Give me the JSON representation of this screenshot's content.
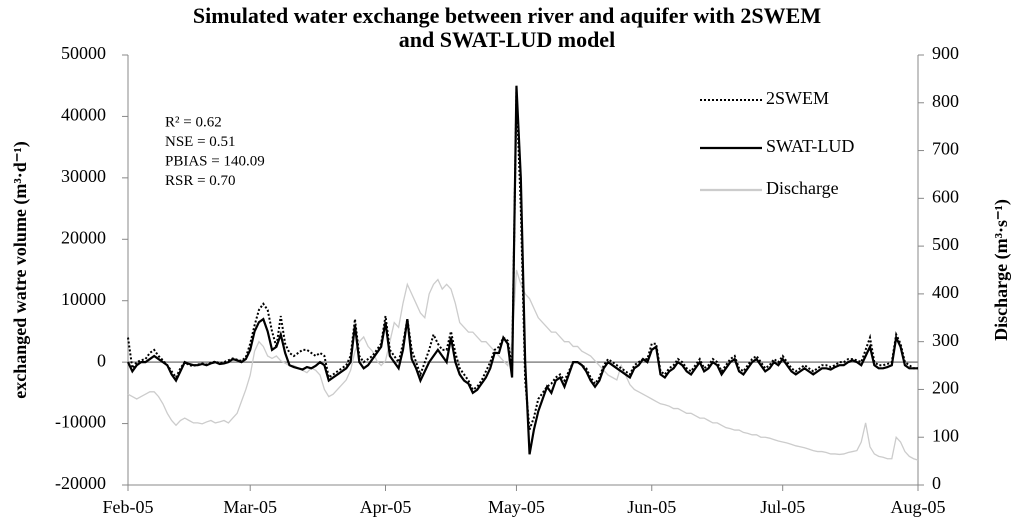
{
  "chart_data": {
    "type": "line",
    "title": [
      "Simulated water exchange between river and aquifer with 2SWEM",
      "and SWAT-LUD model"
    ],
    "ylabel": "exchanged watre volume (m³·d⁻¹)",
    "y2label": "Discharge (m³·s⁻¹)",
    "annotations": [
      "R² = 0.62",
      "NSE = 0.51",
      "PBIAS = 140.09",
      "RSR = 0.70"
    ],
    "categories": [
      "Feb-05",
      null,
      null,
      null,
      null,
      null,
      null,
      null,
      null,
      null,
      null,
      null,
      null,
      null,
      null,
      null,
      null,
      null,
      null,
      null,
      null,
      null,
      null,
      null,
      null,
      null,
      null,
      null,
      "Mar-05",
      null,
      null,
      null,
      null,
      null,
      null,
      null,
      null,
      null,
      null,
      null,
      null,
      null,
      null,
      null,
      null,
      null,
      null,
      null,
      null,
      null,
      null,
      null,
      null,
      null,
      null,
      null,
      null,
      null,
      null,
      "Apr-05",
      null,
      null,
      null,
      null,
      null,
      null,
      null,
      null,
      null,
      null,
      null,
      null,
      null,
      null,
      null,
      null,
      null,
      null,
      null,
      null,
      null,
      null,
      null,
      null,
      null,
      null,
      null,
      null,
      null,
      "May-05",
      null,
      null,
      null,
      null,
      null,
      null,
      null,
      null,
      null,
      null,
      null,
      null,
      null,
      null,
      null,
      null,
      null,
      null,
      null,
      null,
      null,
      null,
      null,
      null,
      null,
      null,
      null,
      null,
      null,
      null,
      "Jun-05",
      null,
      null,
      null,
      null,
      null,
      null,
      null,
      null,
      null,
      null,
      null,
      null,
      null,
      null,
      null,
      null,
      null,
      null,
      null,
      null,
      null,
      null,
      null,
      null,
      null,
      null,
      null,
      null,
      null,
      "Jul-05",
      null,
      null,
      null,
      null,
      null,
      null,
      null,
      null,
      null,
      null,
      null,
      null,
      null,
      null,
      null,
      null,
      null,
      null,
      null,
      null,
      null,
      null,
      null,
      null,
      null,
      null,
      null,
      null,
      null,
      null,
      "Aug-05"
    ],
    "ylim": [
      -20000,
      50000
    ],
    "yticks": [
      -20000,
      -10000,
      0,
      10000,
      20000,
      30000,
      40000,
      50000
    ],
    "y2lim": [
      0,
      900
    ],
    "y2ticks": [
      0,
      100,
      200,
      300,
      400,
      500,
      600,
      700,
      800,
      900
    ],
    "series": [
      {
        "name": "2SWEM",
        "color": "#000000",
        "dash": true,
        "values": [
          4000,
          -1000,
          0,
          300,
          500,
          1500,
          2000,
          1000,
          300,
          -500,
          -1500,
          -2500,
          -1000,
          0,
          -500,
          -600,
          -400,
          -200,
          -400,
          -100,
          100,
          -200,
          0,
          300,
          600,
          400,
          200,
          800,
          3000,
          6000,
          8500,
          9500,
          8500,
          5000,
          2500,
          7500,
          3000,
          1500,
          1000,
          1500,
          2000,
          2000,
          1500,
          1000,
          1500,
          1000,
          -2500,
          -2000,
          -1500,
          -1000,
          -500,
          1000,
          7000,
          1000,
          0,
          500,
          1000,
          2000,
          3000,
          7500,
          2000,
          1000,
          0,
          3000,
          7000,
          2000,
          0,
          -2000,
          0,
          2000,
          4500,
          3000,
          2000,
          2000,
          5000,
          1500,
          -1000,
          -2000,
          -3000,
          -4500,
          -4000,
          -3000,
          -1500,
          0,
          2000,
          2500,
          4000,
          3500,
          -1000,
          44000,
          25000,
          -3000,
          -11000,
          -9000,
          -6000,
          -5000,
          -4000,
          -3500,
          -2500,
          -2000,
          -3000,
          -1500,
          0,
          0,
          -500,
          -1000,
          -2500,
          -3500,
          -2500,
          -500,
          500,
          0,
          -500,
          -1000,
          -1500,
          -2000,
          -500,
          0,
          500,
          500,
          3000,
          3000,
          -1500,
          -2000,
          -1000,
          -500,
          500,
          0,
          -1000,
          -1500,
          -500,
          500,
          -1000,
          -500,
          500,
          0,
          -1500,
          -500,
          500,
          1000,
          -1000,
          -1500,
          -500,
          500,
          1000,
          0,
          -1000,
          -500,
          500,
          0,
          1000,
          0,
          -1000,
          -1500,
          -1000,
          -500,
          -1000,
          -1500,
          -1000,
          -500,
          -500,
          -800,
          -500,
          0,
          0,
          500,
          500,
          300,
          0,
          2000,
          4000,
          0,
          -500,
          -500,
          -300,
          0,
          4500,
          3000,
          0,
          -500,
          -1000,
          -1000
        ]
      },
      {
        "name": "SWAT-LUD",
        "color": "#000000",
        "dash": false,
        "values": [
          0,
          -1500,
          -500,
          0,
          0,
          500,
          1000,
          500,
          0,
          -500,
          -2000,
          -3000,
          -1500,
          0,
          -300,
          -500,
          -500,
          -300,
          -500,
          -200,
          0,
          -300,
          -200,
          0,
          500,
          300,
          0,
          500,
          2000,
          5000,
          6500,
          7000,
          5000,
          2000,
          2500,
          4500,
          1500,
          -500,
          -800,
          -1000,
          -1200,
          -800,
          -1000,
          -600,
          0,
          -500,
          -3000,
          -2500,
          -2000,
          -1500,
          -1000,
          0,
          6000,
          0,
          -1000,
          -500,
          500,
          1500,
          2500,
          6500,
          1000,
          0,
          -1000,
          2000,
          7000,
          500,
          -1000,
          -3000,
          -1500,
          0,
          1000,
          2000,
          1000,
          0,
          4000,
          0,
          -2000,
          -3000,
          -3500,
          -5000,
          -4500,
          -3500,
          -2500,
          -1000,
          1500,
          1500,
          4000,
          3000,
          -2500,
          45000,
          30000,
          0,
          -15000,
          -11000,
          -8000,
          -6000,
          -4000,
          -5000,
          -3000,
          -2500,
          -4000,
          -2000,
          0,
          0,
          -500,
          -1500,
          -3000,
          -4000,
          -3000,
          -1000,
          0,
          -500,
          -1000,
          -1500,
          -2000,
          -2500,
          -1000,
          -500,
          500,
          0,
          2000,
          2500,
          -2000,
          -2500,
          -1500,
          -1000,
          0,
          -500,
          -1500,
          -2000,
          -1000,
          0,
          -1500,
          -1000,
          0,
          -500,
          -2000,
          -1000,
          0,
          500,
          -1500,
          -2000,
          -1000,
          0,
          500,
          -500,
          -1500,
          -1000,
          0,
          -500,
          500,
          -500,
          -1500,
          -2000,
          -1500,
          -1000,
          -1500,
          -2000,
          -1500,
          -1000,
          -1000,
          -1200,
          -800,
          -500,
          -500,
          0,
          300,
          0,
          -500,
          1000,
          2500,
          -500,
          -1000,
          -1000,
          -800,
          -500,
          4000,
          2500,
          -500,
          -1000,
          -1000,
          -1000
        ]
      },
      {
        "name": "Discharge",
        "color": "#cccccc",
        "dash": false,
        "axis": "y2",
        "values": [
          190,
          185,
          180,
          185,
          190,
          195,
          195,
          185,
          170,
          150,
          135,
          125,
          135,
          140,
          135,
          130,
          130,
          128,
          132,
          135,
          130,
          132,
          135,
          130,
          140,
          150,
          175,
          200,
          230,
          280,
          300,
          290,
          270,
          265,
          270,
          260,
          255,
          250,
          250,
          245,
          240,
          235,
          245,
          240,
          230,
          200,
          185,
          190,
          200,
          210,
          220,
          240,
          280,
          300,
          310,
          290,
          280,
          260,
          250,
          260,
          300,
          340,
          330,
          380,
          420,
          400,
          380,
          360,
          350,
          400,
          420,
          430,
          410,
          420,
          410,
          380,
          340,
          330,
          320,
          320,
          310,
          300,
          300,
          290,
          280,
          270,
          260,
          250,
          300,
          450,
          420,
          400,
          390,
          370,
          350,
          340,
          330,
          320,
          320,
          310,
          300,
          300,
          290,
          290,
          280,
          275,
          270,
          260,
          250,
          240,
          230,
          225,
          220,
          250,
          230,
          210,
          200,
          195,
          190,
          185,
          180,
          175,
          170,
          168,
          165,
          160,
          160,
          155,
          150,
          150,
          145,
          140,
          140,
          135,
          130,
          130,
          125,
          120,
          118,
          115,
          115,
          110,
          108,
          105,
          105,
          100,
          100,
          98,
          95,
          92,
          90,
          88,
          85,
          82,
          80,
          78,
          75,
          72,
          70,
          70,
          68,
          65,
          65,
          64,
          65,
          68,
          70,
          72,
          90,
          130,
          80,
          65,
          60,
          58,
          55,
          55,
          100,
          90,
          70,
          60,
          55,
          52
        ]
      }
    ]
  }
}
